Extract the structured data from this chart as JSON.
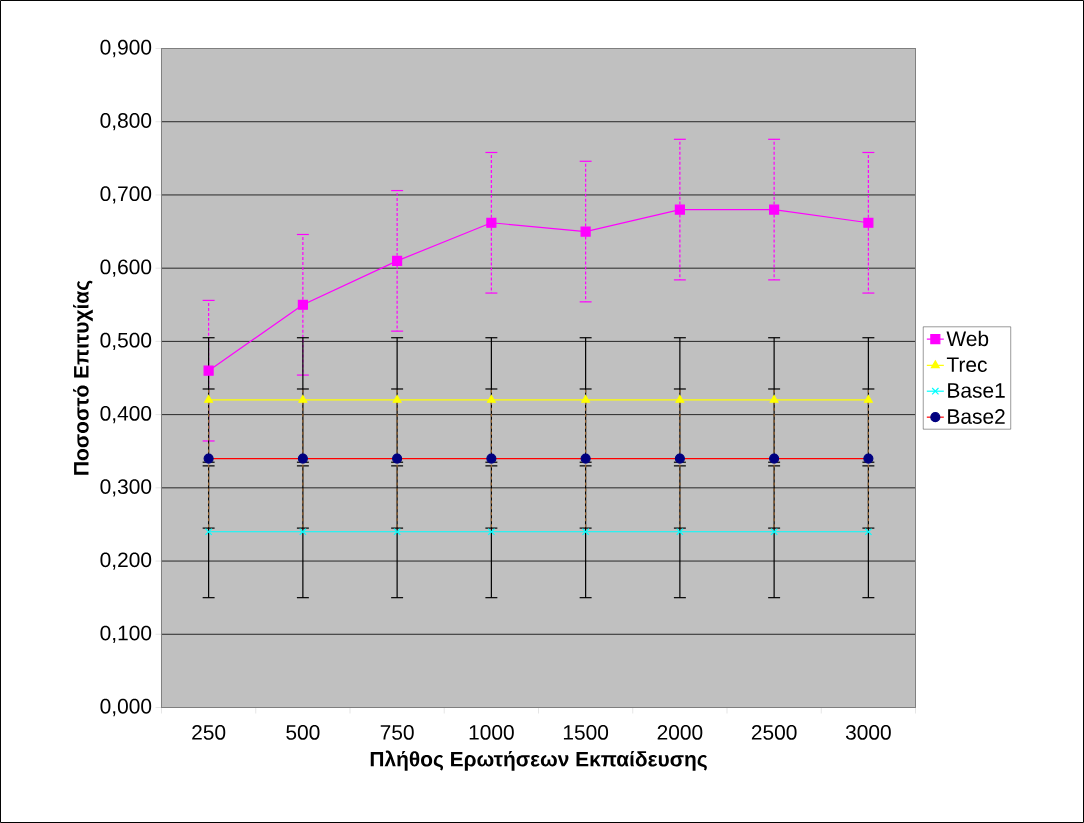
{
  "chart_data": {
    "type": "line",
    "xlabel": "Πλήθος Ερωτήσεων Εκπαίδευσης",
    "ylabel": "Ποσοστό Επιτυχίας",
    "categories": [
      "250",
      "500",
      "750",
      "1000",
      "1500",
      "2000",
      "2500",
      "3000"
    ],
    "series": [
      {
        "name": "Web",
        "color": "#ff00ff",
        "marker": "square",
        "values": [
          0.46,
          0.55,
          0.61,
          0.662,
          0.65,
          0.68,
          0.68,
          0.662
        ],
        "errors": [
          0.096,
          0.096,
          0.096,
          0.096,
          0.096,
          0.096,
          0.096,
          0.096
        ]
      },
      {
        "name": "Trec",
        "color": "#ffff00",
        "marker": "triangle",
        "values": [
          0.42,
          0.42,
          0.42,
          0.42,
          0.42,
          0.42,
          0.42,
          0.42
        ],
        "errors": [
          0.085,
          0.085,
          0.085,
          0.085,
          0.085,
          0.085,
          0.085,
          0.085
        ]
      },
      {
        "name": "Base1",
        "color": "#00ffff",
        "marker": "cross",
        "values": [
          0.24,
          0.24,
          0.24,
          0.24,
          0.24,
          0.24,
          0.24,
          0.24
        ],
        "errors": [
          0.09,
          0.09,
          0.09,
          0.09,
          0.09,
          0.09,
          0.09,
          0.09
        ]
      },
      {
        "name": "Base2",
        "color": "#ff0000",
        "marker": "circle",
        "values": [
          0.34,
          0.34,
          0.34,
          0.34,
          0.34,
          0.34,
          0.34,
          0.34
        ],
        "errors": [
          0.095,
          0.095,
          0.095,
          0.095,
          0.095,
          0.095,
          0.095,
          0.095
        ]
      }
    ],
    "ylim": [
      0,
      0.9
    ],
    "yticks": [
      {
        "value": 0,
        "label": "0,000"
      },
      {
        "value": 0.1,
        "label": "0,100"
      },
      {
        "value": 0.2,
        "label": "0,200"
      },
      {
        "value": 0.3,
        "label": "0,300"
      },
      {
        "value": 0.4,
        "label": "0,400"
      },
      {
        "value": 0.5,
        "label": "0,500"
      },
      {
        "value": 0.6,
        "label": "0,600"
      },
      {
        "value": 0.7,
        "label": "0,700"
      },
      {
        "value": 0.8,
        "label": "0,800"
      },
      {
        "value": 0.9,
        "label": "0,900"
      }
    ],
    "grid": "y",
    "legend": "right"
  }
}
